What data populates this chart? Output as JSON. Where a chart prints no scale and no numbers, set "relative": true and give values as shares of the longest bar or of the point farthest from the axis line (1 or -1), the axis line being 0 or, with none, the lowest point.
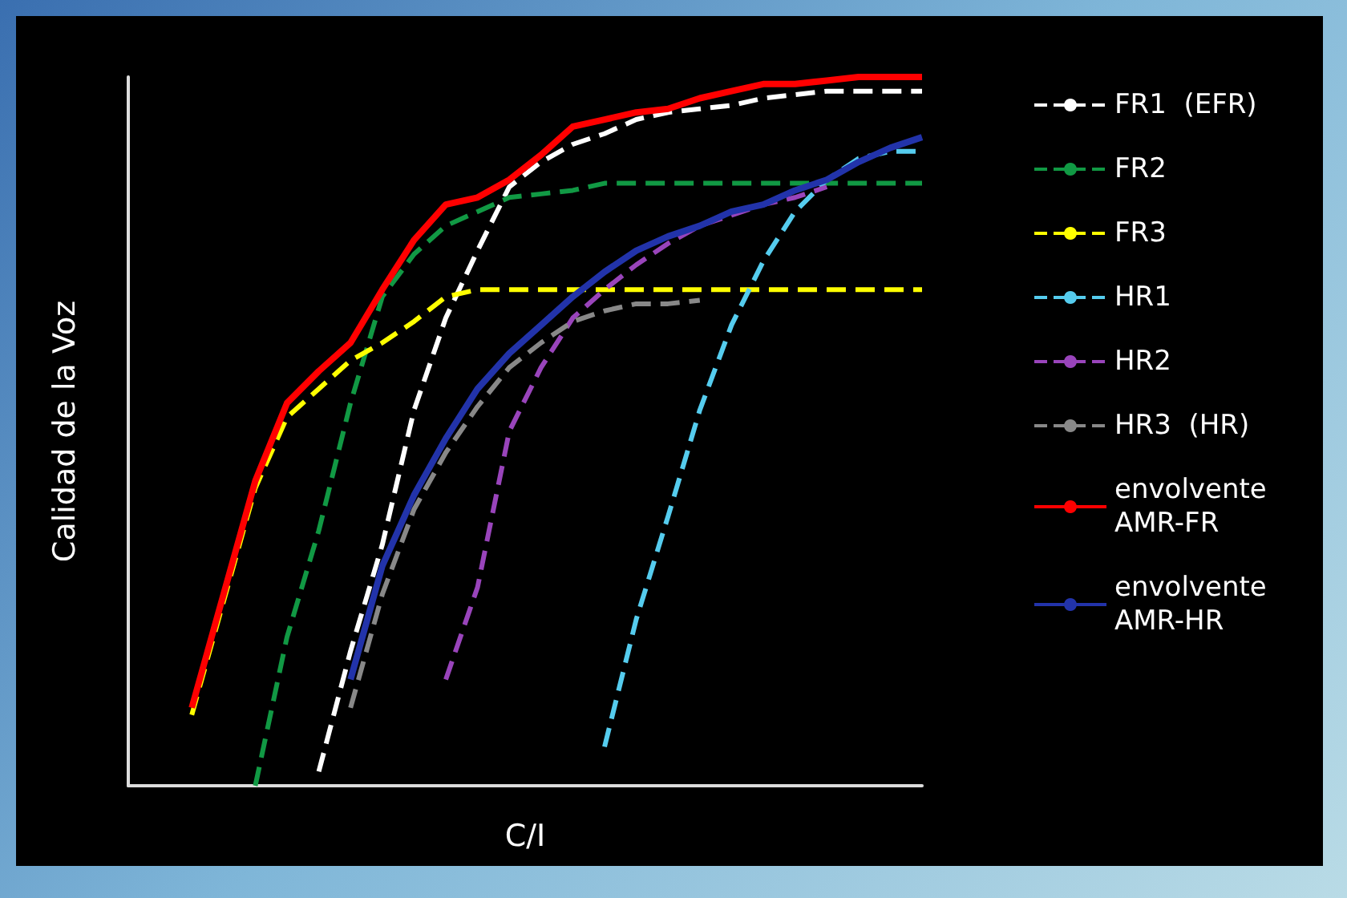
{
  "chart_data": {
    "type": "line",
    "xlabel": "C/I",
    "ylabel": "Calidad de la Voz",
    "relative": true,
    "grid": false,
    "legend": "right",
    "marker": "none",
    "categories": [
      null,
      null,
      null,
      null,
      null,
      null,
      null,
      null,
      null,
      null,
      null,
      null,
      null,
      null,
      null,
      null,
      null,
      null,
      null,
      null,
      null,
      null,
      null,
      null,
      null,
      null
    ],
    "series": [
      {
        "name": "FR1  (EFR)",
        "color": "#ffffff",
        "line_style": "dashed",
        "values": [
          null,
          null,
          null,
          null,
          null,
          null,
          0.02,
          0.19,
          0.34,
          0.53,
          0.66,
          0.755,
          0.845,
          0.88,
          0.905,
          0.92,
          0.94,
          0.95,
          0.955,
          0.96,
          0.97,
          0.975,
          0.98,
          0.98,
          0.98,
          0.98
        ]
      },
      {
        "name": "FR2",
        "color": "#119944",
        "line_style": "dashed",
        "values": [
          null,
          null,
          null,
          null,
          0,
          0.21,
          0.36,
          0.54,
          0.69,
          0.75,
          0.79,
          0.81,
          0.83,
          0.835,
          0.84,
          0.85,
          0.85,
          0.85,
          0.85,
          0.85,
          0.85,
          0.85,
          0.85,
          0.85,
          0.85,
          0.85
        ]
      },
      {
        "name": "FR3",
        "color": "#ffff00",
        "line_style": "dashed",
        "values": [
          null,
          null,
          0.1,
          0.26,
          0.42,
          0.52,
          0.56,
          0.6,
          0.625,
          0.655,
          0.69,
          0.7,
          0.7,
          0.7,
          0.7,
          0.7,
          0.7,
          0.7,
          0.7,
          0.7,
          0.7,
          0.7,
          0.7,
          0.7,
          0.7,
          0.7
        ]
      },
      {
        "name": "HR1",
        "color": "#55ccee",
        "line_style": "dashed",
        "values": [
          null,
          null,
          null,
          null,
          null,
          null,
          null,
          null,
          null,
          null,
          null,
          null,
          null,
          null,
          null,
          0.055,
          0.235,
          0.38,
          0.53,
          0.65,
          0.74,
          0.81,
          0.855,
          0.885,
          0.895,
          0.895
        ]
      },
      {
        "name": "HR2",
        "color": "#9944bb",
        "line_style": "dashed",
        "values": [
          null,
          null,
          null,
          null,
          null,
          null,
          null,
          null,
          null,
          null,
          0.15,
          0.28,
          0.5,
          0.59,
          0.66,
          0.7,
          0.735,
          0.765,
          0.79,
          0.805,
          0.82,
          0.83,
          0.845,
          null,
          null,
          null
        ]
      },
      {
        "name": "HR3  (HR)",
        "color": "#888888",
        "line_style": "dashed",
        "values": [
          null,
          null,
          null,
          null,
          null,
          null,
          null,
          0.11,
          0.27,
          0.39,
          0.47,
          0.535,
          0.59,
          0.625,
          0.655,
          0.67,
          0.68,
          0.68,
          0.685,
          null,
          null,
          null,
          null,
          null,
          null,
          null
        ]
      },
      {
        "name": "envolvente AMR-FR",
        "color": "#ff0000",
        "line_style": "solid",
        "values": [
          null,
          null,
          0.11,
          0.27,
          0.43,
          0.54,
          0.585,
          0.625,
          0.7,
          0.77,
          0.82,
          0.83,
          0.855,
          0.89,
          0.93,
          0.94,
          0.95,
          0.955,
          0.97,
          0.98,
          0.99,
          0.99,
          0.995,
          1,
          1,
          1
        ]
      },
      {
        "name": "envolvente AMR-HR",
        "color": "#2233aa",
        "line_style": "solid",
        "values": [
          null,
          null,
          null,
          null,
          null,
          null,
          null,
          0.15,
          0.31,
          0.41,
          0.49,
          0.56,
          0.61,
          0.65,
          0.69,
          0.725,
          0.755,
          0.775,
          0.79,
          0.81,
          0.82,
          0.84,
          0.855,
          0.88,
          0.9,
          0.915
        ]
      }
    ]
  }
}
